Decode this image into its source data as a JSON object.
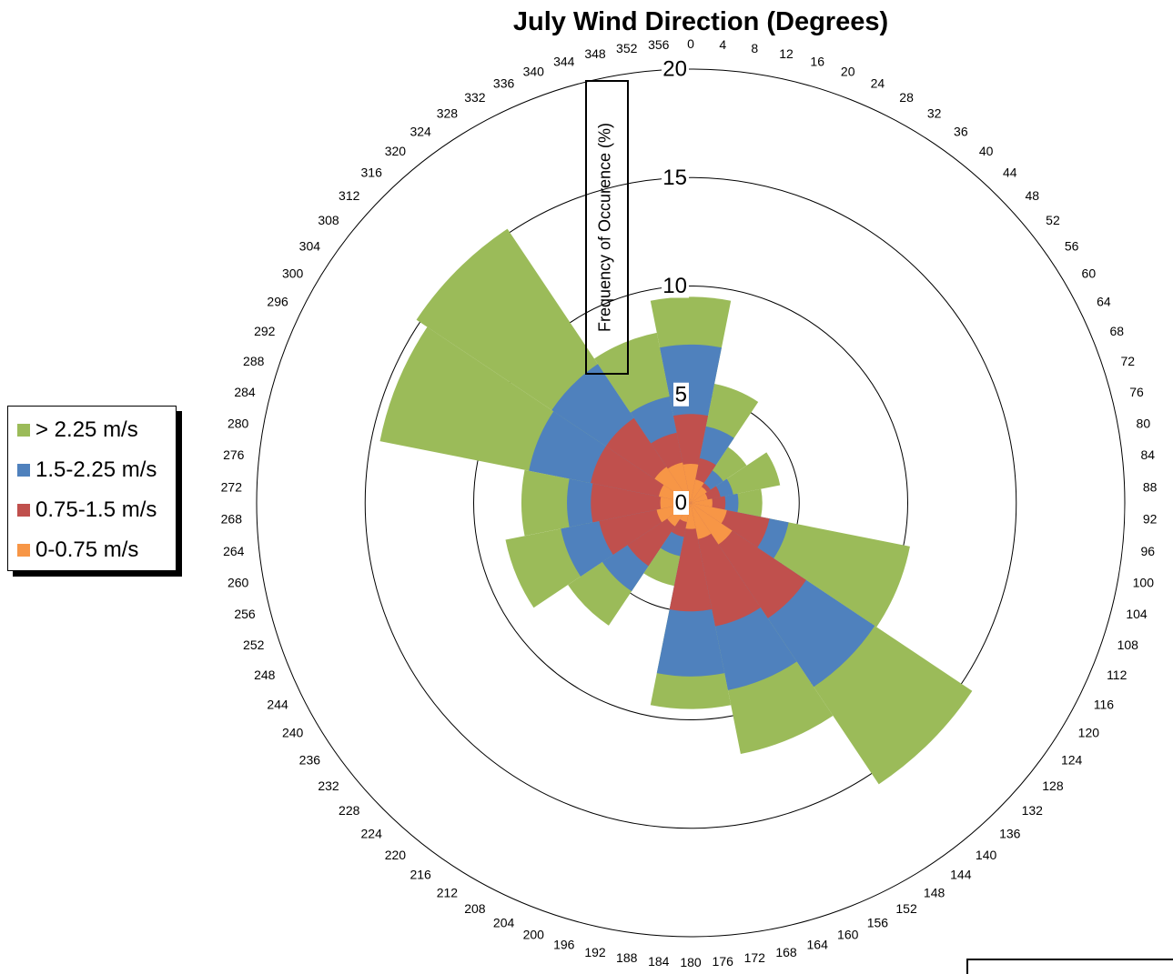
{
  "chart_data": {
    "type": "rose",
    "title": "July Wind Direction (Degrees)",
    "ylabel": "Frequency of Occurence (%)",
    "radial_range": [
      0,
      20
    ],
    "radial_ticks": [
      0,
      5,
      10,
      15,
      20
    ],
    "angle_labels": [
      "0",
      "4",
      "8",
      "12",
      "16",
      "20",
      "24",
      "28",
      "32",
      "36",
      "40",
      "44",
      "48",
      "52",
      "56",
      "60",
      "64",
      "68",
      "72",
      "76",
      "80",
      "84",
      "88",
      "92",
      "96",
      "100",
      "104",
      "108",
      "112",
      "116",
      "120",
      "124",
      "128",
      "132",
      "136",
      "140",
      "144",
      "148",
      "152",
      "156",
      "160",
      "164",
      "168",
      "172",
      "176",
      "180",
      "184",
      "188",
      "192",
      "196",
      "200",
      "204",
      "208",
      "212",
      "216",
      "220",
      "224",
      "228",
      "232",
      "236",
      "240",
      "244",
      "248",
      "252",
      "256",
      "260",
      "264",
      "268",
      "272",
      "276",
      "280",
      "284",
      "288",
      "292",
      "296",
      "300",
      "304",
      "308",
      "312",
      "316",
      "320",
      "324",
      "328",
      "332",
      "336",
      "340",
      "344",
      "348",
      "352",
      "356"
    ],
    "sectors": [
      "0",
      "22.5",
      "45",
      "67.5",
      "90",
      "112.5",
      "135",
      "157.5",
      "180",
      "202.5",
      "225",
      "247.5",
      "270",
      "292.5",
      "315",
      "337.5"
    ],
    "legend_placement": "left",
    "series": [
      {
        "name": "> 2.25 m/s",
        "color": "#9BBB59",
        "values": [
          9.5,
          5.6,
          3.1,
          4.2,
          3.3,
          10.3,
          15.6,
          11.8,
          9.5,
          3.9,
          6.8,
          8.7,
          7.8,
          14.6,
          15.2,
          8.0
        ]
      },
      {
        "name": "1.5-2.25 m/s",
        "color": "#4F81BD",
        "values": [
          7.3,
          3.6,
          1.8,
          2.0,
          2.2,
          4.6,
          10.2,
          8.8,
          8.0,
          2.5,
          4.9,
          6.1,
          5.7,
          7.6,
          7.7,
          5.0
        ]
      },
      {
        "name": "0.75-1.5 m/s",
        "color": "#C0504D",
        "values": [
          4.1,
          2.1,
          1.1,
          1.4,
          1.6,
          3.7,
          6.4,
          5.8,
          5.0,
          1.6,
          3.5,
          4.3,
          4.6,
          4.7,
          4.7,
          3.3
        ]
      },
      {
        "name": "0-0.75 m/s",
        "color": "#F79646",
        "values": [
          1.8,
          1.1,
          0.9,
          0.8,
          1.0,
          1.7,
          2.3,
          1.7,
          1.2,
          0.9,
          1.3,
          1.6,
          1.4,
          1.5,
          2.0,
          1.9
        ]
      }
    ]
  }
}
